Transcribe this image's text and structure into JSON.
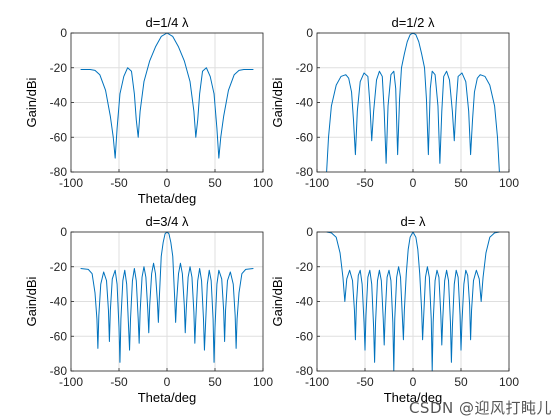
{
  "watermark": "CSDN @迎风打盹儿",
  "chart_data": [
    {
      "type": "line",
      "title": "d=1/4 λ",
      "xlabel": "Theta/deg",
      "ylabel": "Gain/dBi",
      "xlim": [
        -100,
        100
      ],
      "ylim": [
        -80,
        0
      ],
      "xticks": [
        -100,
        -50,
        0,
        50,
        100
      ],
      "yticks": [
        0,
        -20,
        -40,
        -60,
        -80
      ],
      "grid": true,
      "color": "#0072BD",
      "points": [
        [
          -90,
          -21
        ],
        [
          -80,
          -21
        ],
        [
          -75,
          -21.5
        ],
        [
          -70,
          -24
        ],
        [
          -64,
          -33
        ],
        [
          -59,
          -48
        ],
        [
          -56,
          -60
        ],
        [
          -54,
          -72
        ],
        [
          -52,
          -55
        ],
        [
          -49,
          -35
        ],
        [
          -45,
          -25
        ],
        [
          -41,
          -20
        ],
        [
          -37,
          -22
        ],
        [
          -34,
          -35
        ],
        [
          -32,
          -50
        ],
        [
          -30,
          -60
        ],
        [
          -28,
          -45
        ],
        [
          -24,
          -28
        ],
        [
          -18,
          -16
        ],
        [
          -12,
          -8
        ],
        [
          -6,
          -2
        ],
        [
          0,
          0
        ],
        [
          6,
          -2
        ],
        [
          12,
          -8
        ],
        [
          18,
          -16
        ],
        [
          24,
          -28
        ],
        [
          28,
          -45
        ],
        [
          30,
          -60
        ],
        [
          32,
          -50
        ],
        [
          34,
          -35
        ],
        [
          37,
          -22
        ],
        [
          41,
          -20
        ],
        [
          45,
          -25
        ],
        [
          49,
          -35
        ],
        [
          52,
          -55
        ],
        [
          54,
          -72
        ],
        [
          56,
          -60
        ],
        [
          59,
          -48
        ],
        [
          64,
          -33
        ],
        [
          70,
          -24
        ],
        [
          75,
          -21.5
        ],
        [
          80,
          -21
        ],
        [
          90,
          -21
        ]
      ]
    },
    {
      "type": "line",
      "title": "d=1/2 λ",
      "xlabel": "",
      "ylabel": "Gain/dBi",
      "xlim": [
        -100,
        100
      ],
      "ylim": [
        -80,
        0
      ],
      "xticks": [
        -100,
        -50,
        0,
        50,
        100
      ],
      "yticks": [
        0,
        -20,
        -40,
        -60,
        -80
      ],
      "grid": true,
      "color": "#0072BD",
      "points": [
        [
          -90,
          -80
        ],
        [
          -88,
          -60
        ],
        [
          -85,
          -42
        ],
        [
          -80,
          -30
        ],
        [
          -75,
          -25
        ],
        [
          -70,
          -24
        ],
        [
          -67,
          -26
        ],
        [
          -64,
          -34
        ],
        [
          -62,
          -50
        ],
        [
          -60,
          -70
        ],
        [
          -58,
          -45
        ],
        [
          -55,
          -28
        ],
        [
          -51,
          -23
        ],
        [
          -47,
          -25
        ],
        [
          -45,
          -40
        ],
        [
          -43,
          -62
        ],
        [
          -41,
          -45
        ],
        [
          -38,
          -27
        ],
        [
          -35,
          -22
        ],
        [
          -32,
          -25
        ],
        [
          -30,
          -45
        ],
        [
          -28,
          -75
        ],
        [
          -26,
          -42
        ],
        [
          -23,
          -24
        ],
        [
          -20,
          -22
        ],
        [
          -18,
          -32
        ],
        [
          -16,
          -70
        ],
        [
          -14,
          -38
        ],
        [
          -12,
          -20
        ],
        [
          -9,
          -12
        ],
        [
          -6,
          -5
        ],
        [
          -3,
          -1
        ],
        [
          0,
          0
        ],
        [
          3,
          -1
        ],
        [
          6,
          -5
        ],
        [
          9,
          -12
        ],
        [
          12,
          -20
        ],
        [
          14,
          -38
        ],
        [
          16,
          -70
        ],
        [
          18,
          -32
        ],
        [
          20,
          -22
        ],
        [
          23,
          -24
        ],
        [
          26,
          -42
        ],
        [
          28,
          -75
        ],
        [
          30,
          -45
        ],
        [
          32,
          -25
        ],
        [
          35,
          -22
        ],
        [
          38,
          -27
        ],
        [
          41,
          -45
        ],
        [
          43,
          -62
        ],
        [
          45,
          -40
        ],
        [
          47,
          -25
        ],
        [
          51,
          -23
        ],
        [
          55,
          -28
        ],
        [
          58,
          -45
        ],
        [
          60,
          -70
        ],
        [
          62,
          -50
        ],
        [
          64,
          -34
        ],
        [
          67,
          -26
        ],
        [
          70,
          -24
        ],
        [
          75,
          -25
        ],
        [
          80,
          -30
        ],
        [
          85,
          -42
        ],
        [
          88,
          -60
        ],
        [
          90,
          -80
        ]
      ]
    },
    {
      "type": "line",
      "title": "d=3/4 λ",
      "xlabel": "Theta/deg",
      "ylabel": "Gain/dBi",
      "xlim": [
        -100,
        100
      ],
      "ylim": [
        -80,
        0
      ],
      "xticks": [
        -100,
        -50,
        0,
        50,
        100
      ],
      "yticks": [
        0,
        -20,
        -40,
        -60,
        -80
      ],
      "grid": true,
      "color": "#0072BD",
      "points": [
        [
          -90,
          -21
        ],
        [
          -82,
          -21.5
        ],
        [
          -78,
          -24
        ],
        [
          -75,
          -35
        ],
        [
          -73,
          -50
        ],
        [
          -72,
          -67
        ],
        [
          -71,
          -48
        ],
        [
          -69,
          -30
        ],
        [
          -66,
          -23
        ],
        [
          -63,
          -28
        ],
        [
          -61,
          -45
        ],
        [
          -60,
          -63
        ],
        [
          -59,
          -45
        ],
        [
          -57,
          -27
        ],
        [
          -54,
          -22
        ],
        [
          -52,
          -30
        ],
        [
          -50,
          -55
        ],
        [
          -49,
          -75
        ],
        [
          -48,
          -50
        ],
        [
          -46,
          -28
        ],
        [
          -44,
          -22
        ],
        [
          -42,
          -30
        ],
        [
          -40,
          -55
        ],
        [
          -39,
          -68
        ],
        [
          -38,
          -50
        ],
        [
          -36,
          -28
        ],
        [
          -34,
          -21
        ],
        [
          -32,
          -28
        ],
        [
          -30,
          -50
        ],
        [
          -29,
          -64
        ],
        [
          -28,
          -46
        ],
        [
          -26,
          -26
        ],
        [
          -24,
          -20
        ],
        [
          -22,
          -26
        ],
        [
          -20,
          -45
        ],
        [
          -19,
          -58
        ],
        [
          -18,
          -42
        ],
        [
          -16,
          -24
        ],
        [
          -14,
          -18
        ],
        [
          -12,
          -24
        ],
        [
          -10,
          -40
        ],
        [
          -9,
          -52
        ],
        [
          -8,
          -38
        ],
        [
          -6,
          -14
        ],
        [
          -4,
          -6
        ],
        [
          -2,
          -1
        ],
        [
          0,
          0
        ],
        [
          2,
          -1
        ],
        [
          4,
          -6
        ],
        [
          6,
          -14
        ],
        [
          8,
          -38
        ],
        [
          9,
          -52
        ],
        [
          10,
          -40
        ],
        [
          12,
          -24
        ],
        [
          14,
          -18
        ],
        [
          16,
          -24
        ],
        [
          18,
          -42
        ],
        [
          19,
          -58
        ],
        [
          20,
          -45
        ],
        [
          22,
          -26
        ],
        [
          24,
          -20
        ],
        [
          26,
          -26
        ],
        [
          28,
          -46
        ],
        [
          29,
          -64
        ],
        [
          30,
          -50
        ],
        [
          32,
          -28
        ],
        [
          34,
          -21
        ],
        [
          36,
          -28
        ],
        [
          38,
          -50
        ],
        [
          39,
          -68
        ],
        [
          40,
          -55
        ],
        [
          42,
          -30
        ],
        [
          44,
          -22
        ],
        [
          46,
          -28
        ],
        [
          48,
          -50
        ],
        [
          49,
          -75
        ],
        [
          50,
          -55
        ],
        [
          52,
          -30
        ],
        [
          54,
          -22
        ],
        [
          57,
          -27
        ],
        [
          59,
          -45
        ],
        [
          60,
          -63
        ],
        [
          61,
          -45
        ],
        [
          63,
          -28
        ],
        [
          66,
          -23
        ],
        [
          69,
          -30
        ],
        [
          71,
          -48
        ],
        [
          72,
          -67
        ],
        [
          73,
          -50
        ],
        [
          75,
          -35
        ],
        [
          78,
          -24
        ],
        [
          82,
          -21.5
        ],
        [
          90,
          -21
        ]
      ]
    },
    {
      "type": "line",
      "title": "d= λ",
      "xlabel": "Theta/deg",
      "ylabel": "Gain/dBi",
      "xlim": [
        -100,
        100
      ],
      "ylim": [
        -80,
        0
      ],
      "xticks": [
        -100,
        -50,
        0,
        50,
        100
      ],
      "yticks": [
        0,
        -20,
        -40,
        -60,
        -80
      ],
      "grid": true,
      "color": "#0072BD",
      "points": [
        [
          -90,
          0
        ],
        [
          -85,
          -0.5
        ],
        [
          -80,
          -3
        ],
        [
          -76,
          -12
        ],
        [
          -73,
          -26
        ],
        [
          -71,
          -40
        ],
        [
          -69,
          -27
        ],
        [
          -66,
          -22
        ],
        [
          -63,
          -28
        ],
        [
          -61,
          -45
        ],
        [
          -60,
          -62
        ],
        [
          -59,
          -42
        ],
        [
          -57,
          -25
        ],
        [
          -55,
          -22
        ],
        [
          -53,
          -30
        ],
        [
          -51,
          -52
        ],
        [
          -50,
          -68
        ],
        [
          -49,
          -48
        ],
        [
          -47,
          -26
        ],
        [
          -45,
          -22
        ],
        [
          -43,
          -30
        ],
        [
          -41,
          -55
        ],
        [
          -40,
          -75
        ],
        [
          -39,
          -52
        ],
        [
          -37,
          -28
        ],
        [
          -35,
          -22
        ],
        [
          -33,
          -28
        ],
        [
          -31,
          -50
        ],
        [
          -30,
          -65
        ],
        [
          -29,
          -48
        ],
        [
          -27,
          -26
        ],
        [
          -25,
          -22
        ],
        [
          -23,
          -28
        ],
        [
          -21,
          -52
        ],
        [
          -20,
          -80
        ],
        [
          -19,
          -50
        ],
        [
          -17,
          -26
        ],
        [
          -15,
          -20
        ],
        [
          -13,
          -26
        ],
        [
          -11,
          -50
        ],
        [
          -10,
          -62
        ],
        [
          -9,
          -45
        ],
        [
          -7,
          -24
        ],
        [
          -5,
          -10
        ],
        [
          -3,
          -3
        ],
        [
          0,
          0
        ],
        [
          3,
          -3
        ],
        [
          5,
          -10
        ],
        [
          7,
          -24
        ],
        [
          9,
          -45
        ],
        [
          10,
          -62
        ],
        [
          11,
          -50
        ],
        [
          13,
          -26
        ],
        [
          15,
          -20
        ],
        [
          17,
          -26
        ],
        [
          19,
          -50
        ],
        [
          20,
          -80
        ],
        [
          21,
          -52
        ],
        [
          23,
          -28
        ],
        [
          25,
          -22
        ],
        [
          27,
          -26
        ],
        [
          29,
          -48
        ],
        [
          30,
          -65
        ],
        [
          31,
          -50
        ],
        [
          33,
          -28
        ],
        [
          35,
          -22
        ],
        [
          37,
          -28
        ],
        [
          39,
          -52
        ],
        [
          40,
          -75
        ],
        [
          41,
          -55
        ],
        [
          43,
          -30
        ],
        [
          45,
          -22
        ],
        [
          47,
          -26
        ],
        [
          49,
          -48
        ],
        [
          50,
          -68
        ],
        [
          51,
          -52
        ],
        [
          53,
          -30
        ],
        [
          55,
          -22
        ],
        [
          57,
          -25
        ],
        [
          59,
          -42
        ],
        [
          60,
          -62
        ],
        [
          61,
          -45
        ],
        [
          63,
          -28
        ],
        [
          66,
          -22
        ],
        [
          69,
          -27
        ],
        [
          71,
          -40
        ],
        [
          73,
          -26
        ],
        [
          76,
          -12
        ],
        [
          80,
          -3
        ],
        [
          85,
          -0.5
        ],
        [
          90,
          0
        ]
      ]
    }
  ]
}
